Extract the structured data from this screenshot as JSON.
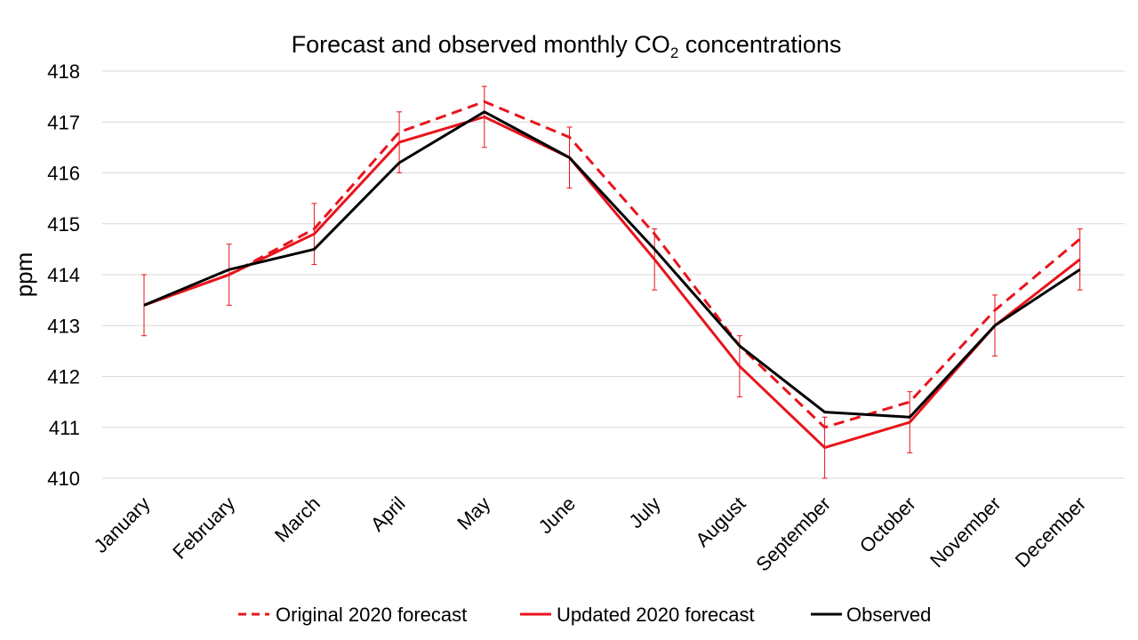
{
  "chart_data": {
    "type": "line",
    "title": {
      "main": "Forecast and observed monthly CO",
      "sub": "2",
      "tail": " concentrations"
    },
    "xlabel": "",
    "ylabel": "ppm",
    "ylim": [
      410,
      418
    ],
    "yticks": [
      410,
      411,
      412,
      413,
      414,
      415,
      416,
      417,
      418
    ],
    "grid": true,
    "legend_position": "bottom",
    "categories": [
      "January",
      "February",
      "March",
      "April",
      "May",
      "June",
      "July",
      "August",
      "September",
      "October",
      "November",
      "December"
    ],
    "series": [
      {
        "name": "Original 2020 forecast",
        "style": "dashed",
        "color": "#e8141c",
        "values": [
          413.4,
          414.0,
          414.9,
          416.8,
          417.4,
          416.7,
          414.8,
          412.6,
          411.0,
          411.5,
          413.3,
          414.7
        ]
      },
      {
        "name": "Updated 2020 forecast",
        "style": "solid",
        "color": "#e8141c",
        "values": [
          413.4,
          414.0,
          414.8,
          416.6,
          417.1,
          416.3,
          414.3,
          412.2,
          410.6,
          411.1,
          413.0,
          414.3
        ],
        "error": [
          0.6,
          0.6,
          0.6,
          0.6,
          0.6,
          0.6,
          0.6,
          0.6,
          0.6,
          0.6,
          0.6,
          0.6
        ]
      },
      {
        "name": "Observed",
        "style": "solid",
        "color": "#000000",
        "values": [
          413.4,
          414.1,
          414.5,
          416.2,
          417.2,
          416.3,
          414.5,
          412.6,
          411.3,
          411.2,
          413.0,
          414.1
        ]
      }
    ]
  }
}
